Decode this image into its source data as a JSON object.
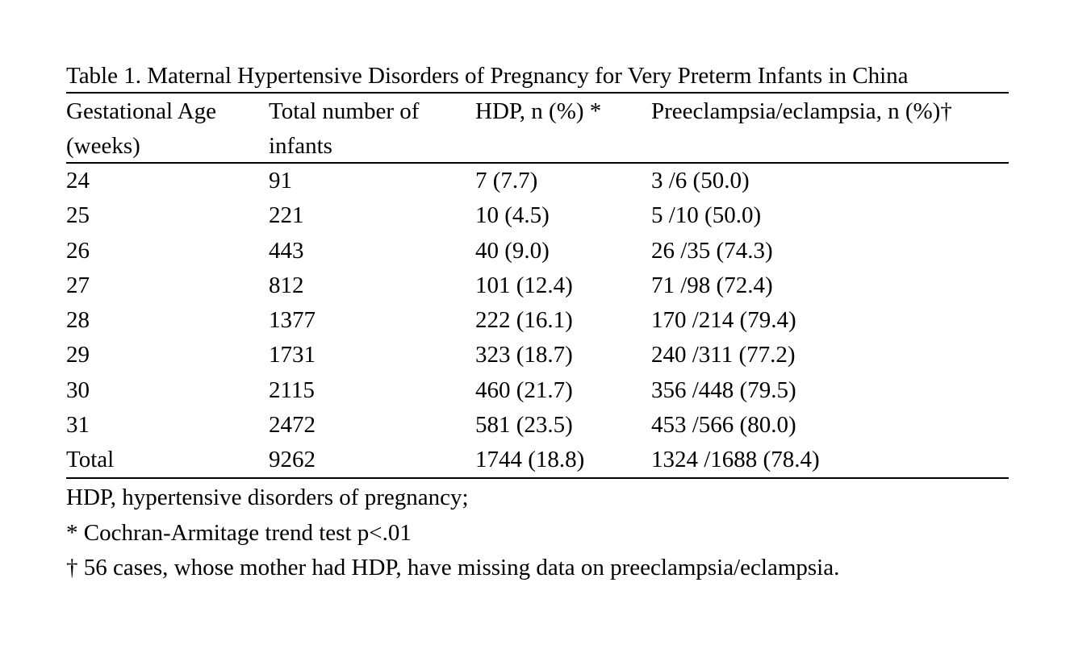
{
  "table": {
    "title": "Table 1. Maternal Hypertensive Disorders of Pregnancy for Very Preterm Infants in China",
    "headers": [
      "Gestational Age (weeks)",
      "Total number of infants",
      "HDP, n (%) *",
      "Preeclampsia/eclampsia, n (%)†"
    ],
    "rows": [
      [
        "24",
        "91",
        "7 (7.7)",
        "3 /6 (50.0)"
      ],
      [
        "25",
        "221",
        "10 (4.5)",
        "5 /10 (50.0)"
      ],
      [
        "26",
        "443",
        "40 (9.0)",
        "26 /35 (74.3)"
      ],
      [
        "27",
        "812",
        "101 (12.4)",
        "71 /98 (72.4)"
      ],
      [
        "28",
        "1377",
        "222 (16.1)",
        "170 /214 (79.4)"
      ],
      [
        "29",
        "1731",
        "323 (18.7)",
        "240 /311 (77.2)"
      ],
      [
        "30",
        "2115",
        "460 (21.7)",
        "356 /448 (79.5)"
      ],
      [
        "31",
        "2472",
        "581 (23.5)",
        "453 /566 (80.0)"
      ],
      [
        "Total",
        "9262",
        "1744 (18.8)",
        "1324 /1688 (78.4)"
      ]
    ],
    "notes": [
      "HDP, hypertensive disorders of pregnancy;",
      "* Cochran-Armitage trend test p<.01",
      "† 56 cases, whose mother had HDP, have missing data on preeclampsia/eclampsia."
    ]
  }
}
